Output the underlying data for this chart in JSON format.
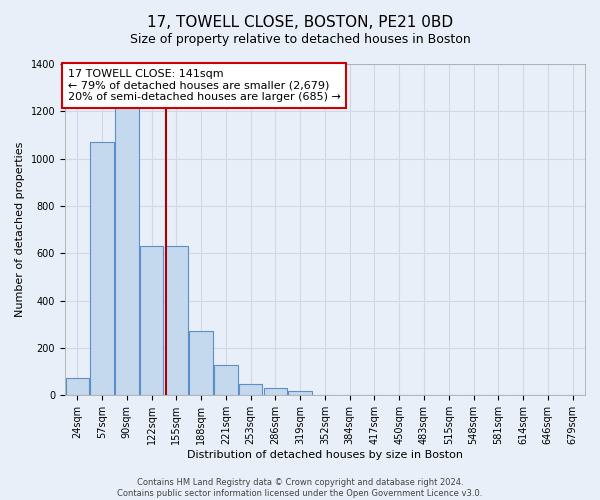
{
  "title": "17, TOWELL CLOSE, BOSTON, PE21 0BD",
  "subtitle": "Size of property relative to detached houses in Boston",
  "xlabel": "Distribution of detached houses by size in Boston",
  "ylabel": "Number of detached properties",
  "bar_color": "#c5d9ee",
  "bar_edge_color": "#5b8fc9",
  "background_color": "#e8eff8",
  "grid_color": "#d0d8e8",
  "categories": [
    "24sqm",
    "57sqm",
    "90sqm",
    "122sqm",
    "155sqm",
    "188sqm",
    "221sqm",
    "253sqm",
    "286sqm",
    "319sqm",
    "352sqm",
    "384sqm",
    "417sqm",
    "450sqm",
    "483sqm",
    "515sqm",
    "548sqm",
    "581sqm",
    "614sqm",
    "646sqm",
    "679sqm"
  ],
  "values": [
    75,
    1070,
    1230,
    630,
    630,
    270,
    130,
    50,
    30,
    20,
    0,
    0,
    0,
    0,
    0,
    0,
    0,
    0,
    0,
    0,
    0
  ],
  "ylim": [
    0,
    1400
  ],
  "yticks": [
    0,
    200,
    400,
    600,
    800,
    1000,
    1200,
    1400
  ],
  "red_line_x": 3.58,
  "red_line_color": "#aa0000",
  "annotation_text": "17 TOWELL CLOSE: 141sqm\n← 79% of detached houses are smaller (2,679)\n20% of semi-detached houses are larger (685) →",
  "annotation_box_color": "#ffffff",
  "annotation_box_edge_color": "#cc0000",
  "footer_text": "Contains HM Land Registry data © Crown copyright and database right 2024.\nContains public sector information licensed under the Open Government Licence v3.0.",
  "title_fontsize": 11,
  "subtitle_fontsize": 9,
  "axis_label_fontsize": 8,
  "tick_fontsize": 7,
  "annotation_fontsize": 8
}
